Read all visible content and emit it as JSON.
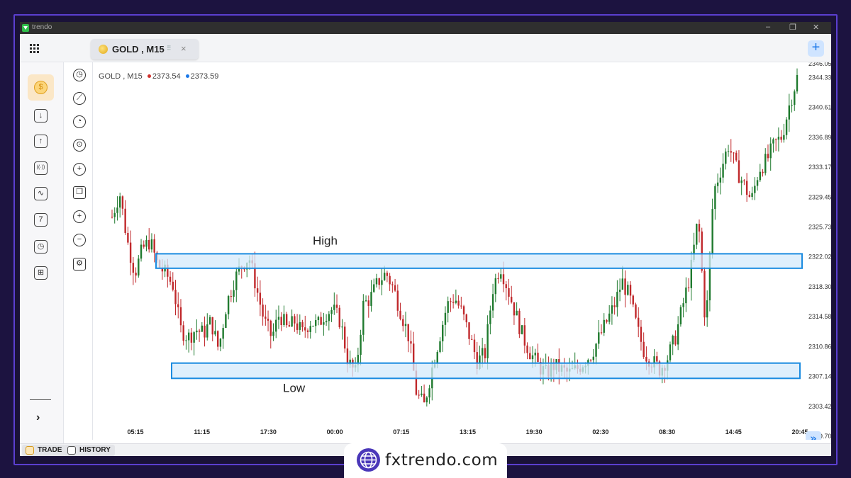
{
  "window": {
    "app_title": "trendo",
    "minimize": "–",
    "restore": "❐",
    "close": "✕"
  },
  "tabbar": {
    "active_tab": "GOLD , M15",
    "drag_glyph": "⠿",
    "close_glyph": "×",
    "add_glyph": "+"
  },
  "sidebar": {
    "items": [
      {
        "name": "gold-coin-icon",
        "glyph": "$"
      },
      {
        "name": "deposit-icon",
        "glyph": "↓"
      },
      {
        "name": "withdraw-icon",
        "glyph": "↑"
      },
      {
        "name": "signal-icon",
        "glyph": "((·))"
      },
      {
        "name": "analytics-icon",
        "glyph": "∿"
      },
      {
        "name": "calendar-icon",
        "glyph": "7"
      },
      {
        "name": "history-clock-icon",
        "glyph": "◷"
      },
      {
        "name": "gift-icon",
        "glyph": "⊞"
      }
    ],
    "expand_glyph": "›"
  },
  "toolbar": {
    "tools": [
      {
        "name": "clock-icon",
        "glyph": "◷"
      },
      {
        "name": "draw-line-icon",
        "glyph": "⟋"
      },
      {
        "name": "pie-chart-icon",
        "glyph": "◔"
      },
      {
        "name": "crosshair-icon",
        "glyph": "⊙"
      },
      {
        "name": "add-indicator-icon",
        "glyph": "+"
      },
      {
        "name": "layers-icon",
        "glyph": "❐"
      },
      {
        "name": "zoom-in-icon",
        "glyph": "+"
      },
      {
        "name": "zoom-out-icon",
        "glyph": "−"
      },
      {
        "name": "settings-gear-icon",
        "glyph": "⚙"
      }
    ]
  },
  "chart_header": {
    "symbol": "GOLD , M15",
    "bid": "2373.54",
    "ask": "2373.59",
    "bid_color": "#d0312d",
    "ask_color": "#1b78e8"
  },
  "chart_data": {
    "type": "candlestick",
    "price_axis": [
      "2346.05",
      "2344.33",
      "2340.61",
      "2336.89",
      "2333.17",
      "2329.45",
      "2325.73",
      "2322.02",
      "2318.30",
      "2314.58",
      "2310.86",
      "2307.14",
      "2303.42",
      "2299.70"
    ],
    "ylim": [
      2299.7,
      2346.05
    ],
    "time_axis": [
      "05:15",
      "11:15",
      "17:30",
      "00:00",
      "07:15",
      "13:15",
      "19:30",
      "02:30",
      "08:30",
      "14:45",
      "20:45"
    ],
    "annotations": [
      {
        "label": "High",
        "zone": [
          2320.6,
          2322.4
        ]
      },
      {
        "label": "Low",
        "zone": [
          2306.9,
          2308.8
        ]
      }
    ],
    "up_color": "#1f7a2e",
    "down_color": "#c0282b",
    "zone_fill": "#d4e9fb",
    "zone_stroke": "#1b8be0",
    "close_path": [
      2327,
      2330,
      2324,
      2320,
      2323,
      2324,
      2321,
      2320,
      2318.5,
      2313,
      2312,
      2313,
      2312.5,
      2314,
      2310.5,
      2316,
      2319,
      2321,
      2322,
      2318,
      2314,
      2312,
      2315,
      2313,
      2314,
      2312.5,
      2314,
      2313.5,
      2315,
      2315.5,
      2314,
      2309,
      2307.5,
      2316,
      2317,
      2319,
      2320,
      2318,
      2315,
      2312,
      2305,
      2303.5,
      2308,
      2312,
      2316,
      2317,
      2315,
      2312,
      2309,
      2310,
      2318,
      2321,
      2318,
      2315,
      2312,
      2310,
      2308.5,
      2307.5,
      2308.5,
      2308,
      2307.5,
      2308,
      2309,
      2310,
      2312,
      2314,
      2316,
      2319,
      2317,
      2313,
      2310,
      2309,
      2308,
      2309.5,
      2312,
      2316,
      2320,
      2327,
      2313,
      2330,
      2333,
      2336,
      2333,
      2331,
      2329,
      2333,
      2334,
      2336,
      2337,
      2341,
      2344.3
    ]
  },
  "chart_scroll_glyph": "»",
  "bottom_tabs": {
    "trade": "TRADE",
    "history": "HISTORY"
  },
  "brand": {
    "text": "fxtrendo.com"
  }
}
